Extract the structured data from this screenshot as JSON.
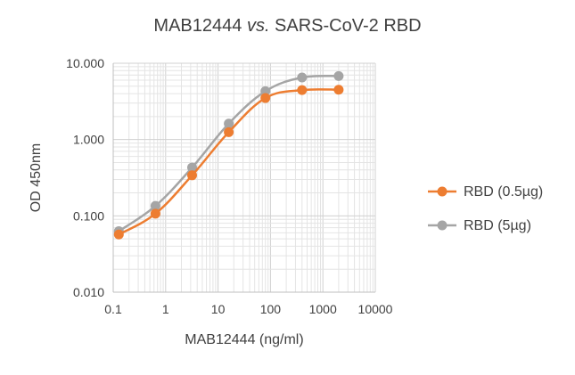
{
  "chart_data": {
    "type": "line",
    "title_main": "MAB12444 ",
    "title_italic": "vs.",
    "title_rest": " SARS-CoV-2 RBD",
    "xlabel": "MAB12444 (ng/ml)",
    "ylabel": "OD 450nm",
    "x_scale": "log",
    "y_scale": "log",
    "xlim": [
      0.1,
      10000
    ],
    "ylim": [
      0.01,
      10
    ],
    "x_ticks": [
      0.1,
      1,
      10,
      100,
      1000,
      10000
    ],
    "x_tick_labels": [
      "0.1",
      "1",
      "10",
      "100",
      "1000",
      "10000"
    ],
    "y_ticks": [
      0.01,
      0.1,
      1,
      10
    ],
    "y_tick_labels": [
      "0.010",
      "0.100",
      "1.000",
      "10.000"
    ],
    "grid": true,
    "legend_position": "right",
    "x": [
      0.128,
      0.64,
      3.2,
      16,
      80,
      400,
      2000
    ],
    "series": [
      {
        "name": "RBD (0.5µg)",
        "color": "#ED7D31",
        "values": [
          0.057,
          0.107,
          0.34,
          1.25,
          3.5,
          4.45,
          4.5
        ]
      },
      {
        "name": "RBD (5µg)",
        "color": "#A5A5A5",
        "values": [
          0.063,
          0.135,
          0.43,
          1.62,
          4.3,
          6.5,
          6.8
        ]
      }
    ]
  }
}
